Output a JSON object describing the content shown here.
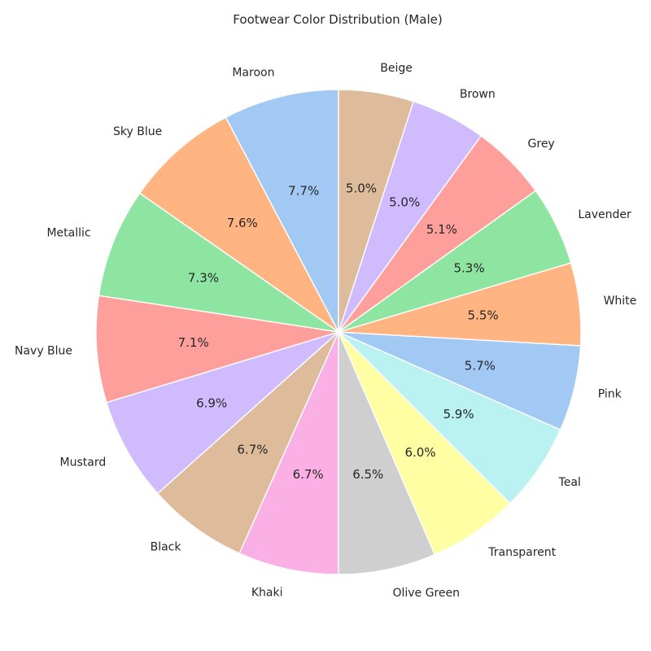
{
  "chart_data": {
    "type": "pie",
    "title": "Footwear Color Distribution (Male)",
    "start_angle_deg": 90,
    "direction": "counterclockwise",
    "slices": [
      {
        "label": "Maroon",
        "value": 7.7,
        "pct_text": "7.7%",
        "color": "#a1c9f4"
      },
      {
        "label": "Sky Blue",
        "value": 7.6,
        "pct_text": "7.6%",
        "color": "#ffb482"
      },
      {
        "label": "Metallic",
        "value": 7.3,
        "pct_text": "7.3%",
        "color": "#8de5a1"
      },
      {
        "label": "Navy Blue",
        "value": 7.1,
        "pct_text": "7.1%",
        "color": "#ff9f9b"
      },
      {
        "label": "Mustard",
        "value": 6.9,
        "pct_text": "6.9%",
        "color": "#d0bbff"
      },
      {
        "label": "Black",
        "value": 6.7,
        "pct_text": "6.7%",
        "color": "#debb9b"
      },
      {
        "label": "Khaki",
        "value": 6.7,
        "pct_text": "6.7%",
        "color": "#fab0e4"
      },
      {
        "label": "Olive Green",
        "value": 6.5,
        "pct_text": "6.5%",
        "color": "#cfcfcf"
      },
      {
        "label": "Transparent",
        "value": 6.0,
        "pct_text": "6.0%",
        "color": "#fffea3"
      },
      {
        "label": "Teal",
        "value": 5.9,
        "pct_text": "5.9%",
        "color": "#b9f2f0"
      },
      {
        "label": "Pink",
        "value": 5.7,
        "pct_text": "5.7%",
        "color": "#a1c9f4"
      },
      {
        "label": "White",
        "value": 5.5,
        "pct_text": "5.5%",
        "color": "#ffb482"
      },
      {
        "label": "Lavender",
        "value": 5.3,
        "pct_text": "5.3%",
        "color": "#8de5a1"
      },
      {
        "label": "Grey",
        "value": 5.1,
        "pct_text": "5.1%",
        "color": "#ff9f9b"
      },
      {
        "label": "Brown",
        "value": 5.0,
        "pct_text": "5.0%",
        "color": "#d0bbff"
      },
      {
        "label": "Beige",
        "value": 5.0,
        "pct_text": "5.0%",
        "color": "#debb9b"
      }
    ]
  }
}
